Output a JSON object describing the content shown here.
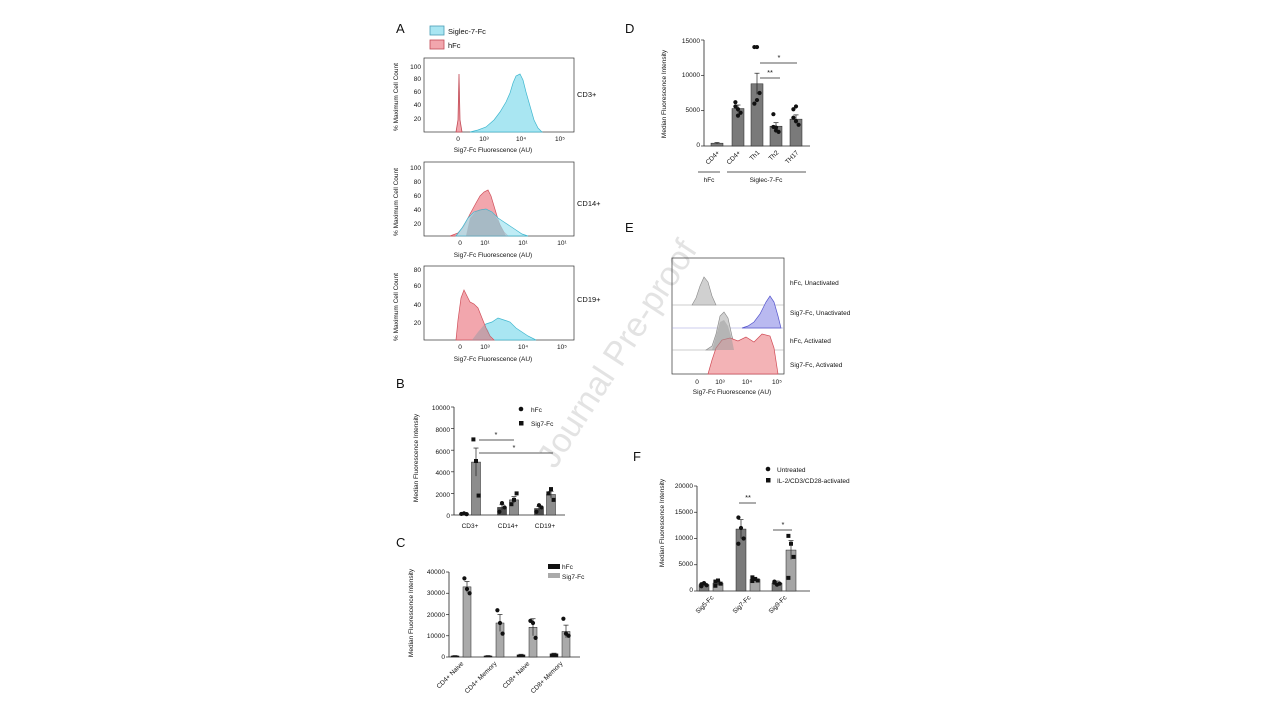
{
  "watermark": "Journal Pre-proof",
  "panels": {
    "A": {
      "label": "A",
      "legend": [
        {
          "name": "Siglec-7-Fc",
          "fill": "#a9e6f2",
          "stroke": "#4a9db5"
        },
        {
          "name": "hFc",
          "fill": "#f2a6ad",
          "stroke": "#c24a55"
        }
      ],
      "ylabel": "% Maximum Cell Count",
      "xlabel": "Sig7-Fc Fluorescence (AU)",
      "xticks": [
        "0",
        "10³",
        "10⁴",
        "10⁵"
      ],
      "xticks_cd14": [
        "0",
        "10¹",
        "10¹",
        "10¹"
      ],
      "yticks": [
        "100",
        "80",
        "60",
        "40",
        "20"
      ],
      "yticks_cd3": [
        "100",
        "80",
        "60",
        "40",
        "20"
      ],
      "yticks_cd19": [
        "80",
        "60",
        "40",
        "20"
      ],
      "subplots": [
        {
          "name": "CD3+"
        },
        {
          "name": "CD14+"
        },
        {
          "name": "CD19+"
        }
      ]
    },
    "B": {
      "label": "B",
      "ylabel": "Median Fluorescence Intensity",
      "yticks": [
        "10000",
        "8000",
        "6000",
        "4000",
        "2000",
        "0"
      ],
      "legend": [
        "hFc",
        "Sig7-Fc"
      ],
      "sig": [
        "*",
        "*"
      ]
    },
    "C": {
      "label": "C",
      "ylabel": "Median Fluorescence Intensity",
      "yticks": [
        "40000",
        "30000",
        "20000",
        "10000",
        "0"
      ],
      "legend": [
        "hFc",
        "Sig7-Fc"
      ]
    },
    "D": {
      "label": "D",
      "ylabel": "Median Fluorescence Intensity",
      "yticks": [
        "15000",
        "10000",
        "5000",
        "0"
      ],
      "group_labels": [
        "hFc",
        "Siglec-7-Fc"
      ],
      "sig": [
        "**",
        "*"
      ]
    },
    "E": {
      "label": "E",
      "xlabel": "Sig7-Fc Fluorescence (AU)",
      "xticks": [
        "0",
        "10³",
        "10⁴",
        "10⁵"
      ],
      "tracks": [
        {
          "name": "hFc, Unactivated",
          "fill": "#d0d0d0",
          "stroke": "#888888"
        },
        {
          "name": "Sig7-Fc, Unactivated",
          "fill": "#b9b9f0",
          "stroke": "#5555cc"
        },
        {
          "name": "hFc, Activated",
          "fill": "#d0d0d0",
          "stroke": "#888888"
        },
        {
          "name": "Sig7-Fc, Activated",
          "fill": "#f3b3b6",
          "stroke": "#d04a55"
        }
      ]
    },
    "F": {
      "label": "F",
      "ylabel": "Median Fluorescence Intensity",
      "yticks": [
        "20000",
        "15000",
        "10000",
        "5000",
        "0"
      ],
      "legend": [
        "Untreated",
        "IL-2/CD3/CD28-activated"
      ],
      "sig": [
        "**",
        "*"
      ]
    }
  },
  "chart_data": [
    {
      "panel": "A",
      "type": "area",
      "subplot": "CD3+",
      "xlabel": "Sig7-Fc Fluorescence (AU)",
      "ylabel": "% Maximum Cell Count",
      "ylim": [
        0,
        100
      ],
      "series": [
        {
          "name": "Siglec-7-Fc",
          "peak_x": "10⁴",
          "peak_y": 90
        },
        {
          "name": "hFc",
          "peak_x": "0",
          "peak_y": 88
        }
      ]
    },
    {
      "panel": "A",
      "type": "area",
      "subplot": "CD14+",
      "xlabel": "Sig7-Fc Fluorescence (AU)",
      "ylabel": "% Maximum Cell Count",
      "ylim": [
        0,
        100
      ],
      "series": [
        {
          "name": "Siglec-7-Fc",
          "peak_y": 38
        },
        {
          "name": "hFc",
          "peak_y": 65
        }
      ]
    },
    {
      "panel": "A",
      "type": "area",
      "subplot": "CD19+",
      "xlabel": "Sig7-Fc Fluorescence (AU)",
      "ylabel": "% Maximum Cell Count",
      "ylim": [
        0,
        90
      ],
      "series": [
        {
          "name": "Siglec-7-Fc",
          "peak_y": 28
        },
        {
          "name": "hFc",
          "peak_y": 68
        }
      ]
    },
    {
      "panel": "B",
      "type": "bar",
      "ylabel": "Median Fluorescence Intensity",
      "ylim": [
        0,
        10000
      ],
      "categories": [
        "CD3+",
        "CD14+",
        "CD19+"
      ],
      "series": [
        {
          "name": "hFc",
          "values": [
            120,
            700,
            600
          ],
          "err": [
            50,
            250,
            200
          ],
          "points": [
            [
              100,
              150,
              80
            ],
            [
              300,
              1100,
              700
            ],
            [
              300,
              900,
              700
            ]
          ]
        },
        {
          "name": "Sig7-Fc",
          "values": [
            4900,
            1400,
            1900
          ],
          "err": [
            1300,
            300,
            300
          ],
          "points": [
            [
              7000,
              5000,
              1800
            ],
            [
              1000,
              1400,
              2000
            ],
            [
              2000,
              2400,
              1400
            ]
          ]
        }
      ]
    },
    {
      "panel": "C",
      "type": "bar",
      "ylabel": "Median Fluorescence Intensity",
      "ylim": [
        0,
        40000
      ],
      "categories": [
        "CD4+ Naive",
        "CD4+ Memory",
        "CD8+ Naive",
        "CD8+ Memory"
      ],
      "series": [
        {
          "name": "hFc",
          "values": [
            500,
            500,
            1000,
            1500
          ],
          "err": [
            200,
            200,
            300,
            300
          ]
        },
        {
          "name": "Sig7-Fc",
          "values": [
            33000,
            16000,
            14000,
            12000
          ],
          "err": [
            2500,
            4000,
            4000,
            3000
          ],
          "points": [
            [
              37000,
              32000,
              30000
            ],
            [
              22000,
              16000,
              11000
            ],
            [
              17000,
              16000,
              9000
            ],
            [
              18000,
              11000,
              10000
            ]
          ]
        }
      ]
    },
    {
      "panel": "D",
      "type": "bar",
      "ylabel": "Median Fluorescence Intensity",
      "ylim": [
        0,
        15000
      ],
      "categories": [
        "CD4+",
        "CD4+",
        "Th1",
        "Th2",
        "TH17"
      ],
      "groups": [
        "hFc",
        "Siglec-7-Fc",
        "Siglec-7-Fc",
        "Siglec-7-Fc",
        "Siglec-7-Fc"
      ],
      "values": [
        400,
        5300,
        8800,
        2800,
        3800
      ],
      "err": [
        100,
        500,
        1500,
        500,
        600
      ],
      "points": [
        [],
        [
          6200,
          5200,
          4700,
          5600,
          4300
        ],
        [
          14000,
          14000,
          7500,
          6000,
          6500
        ],
        [
          4500,
          2200,
          2000,
          2700,
          2600
        ],
        [
          5200,
          5600,
          3000,
          4000,
          3500
        ]
      ]
    },
    {
      "panel": "E",
      "type": "area",
      "xlabel": "Sig7-Fc Fluorescence (AU)",
      "series": [
        {
          "name": "hFc, Unactivated"
        },
        {
          "name": "Sig7-Fc, Unactivated"
        },
        {
          "name": "hFc, Activated"
        },
        {
          "name": "Sig7-Fc, Activated"
        }
      ]
    },
    {
      "panel": "F",
      "type": "bar",
      "ylabel": "Median Fluorescence Intensity",
      "ylim": [
        0,
        20000
      ],
      "categories": [
        "Sig5-Fc",
        "Sig7-Fc",
        "Sig9-Fc"
      ],
      "series": [
        {
          "name": "Untreated",
          "values": [
            1200,
            11800,
            1500
          ],
          "err": [
            300,
            1800,
            400
          ],
          "points": [
            [
              900,
              1500,
              1100,
              1300
            ],
            [
              14000,
              12000,
              10000,
              9000
            ],
            [
              1800,
              1200,
              1400,
              1600
            ]
          ]
        },
        {
          "name": "IL-2/CD3/CD28-activated",
          "values": [
            1500,
            2200,
            7800
          ],
          "err": [
            400,
            300,
            1800
          ],
          "points": [
            [
              1000,
              2000,
              1400,
              1800
            ],
            [
              2600,
              2300,
              2000,
              1900
            ],
            [
              10500,
              9000,
              6500,
              2500
            ]
          ]
        }
      ]
    }
  ]
}
